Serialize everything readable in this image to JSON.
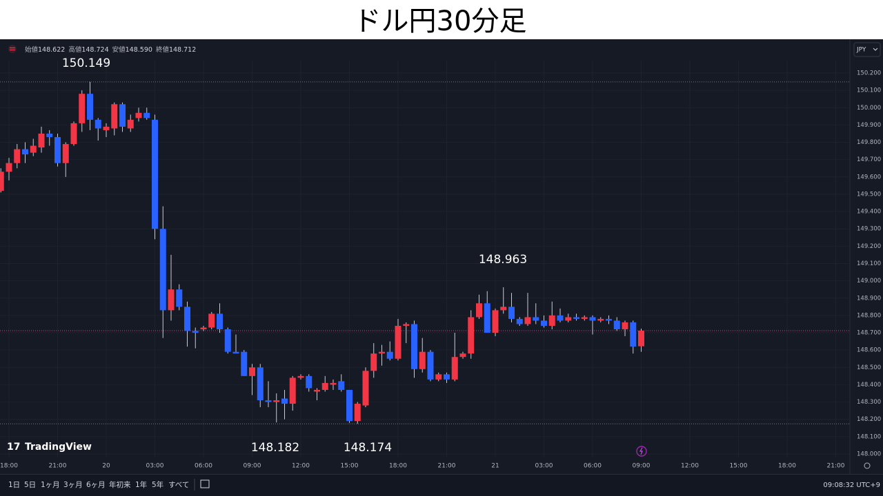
{
  "page_title": "ドル円30分足",
  "legend_header": [
    {
      "label": "始値",
      "value": "148.622"
    },
    {
      "label": "高値",
      "value": "148.724"
    },
    {
      "label": "安値",
      "value": "148.590"
    },
    {
      "label": "終値",
      "value": "148.712"
    }
  ],
  "currency": "JPY",
  "logo": "TradingView",
  "toolbar": {
    "ranges": [
      "1日",
      "5日",
      "1ヶ月",
      "3ヶ月",
      "6ヶ月",
      "年初来",
      "1年",
      "5年",
      "すべて"
    ],
    "clock": "09:08:32 UTC+9"
  },
  "chart_data": {
    "type": "candlestick",
    "up_color": "#f23645",
    "down_color": "#2962ff",
    "wick_color": "#c9ccd4",
    "grid": true,
    "x": [
      17.5,
      18,
      18.5,
      19,
      19.5,
      20,
      20.5,
      21,
      21.5,
      22,
      22.5,
      23,
      23.5,
      24,
      24.5,
      25,
      25.5,
      26,
      26.5,
      27,
      27.5,
      28,
      28.5,
      29,
      29.5,
      30,
      30.5,
      31,
      31.5,
      32,
      32.5,
      33,
      33.5,
      34,
      34.5,
      35,
      35.5,
      36,
      36.5,
      37,
      37.5,
      38,
      38.5,
      39,
      39.5,
      40,
      40.5,
      41,
      41.5,
      42,
      42.5,
      43,
      43.5,
      44,
      44.5,
      45,
      45.5,
      46,
      46.5,
      47,
      47.5,
      48,
      48.5,
      49,
      49.5,
      50,
      50.5,
      51,
      51.5,
      52,
      52.5,
      53,
      53.5,
      54,
      54.5,
      55,
      55.5,
      56,
      56.5,
      57
    ],
    "open": [
      149.52,
      149.63,
      149.68,
      149.76,
      149.74,
      149.77,
      149.85,
      149.83,
      149.68,
      149.79,
      149.91,
      150.08,
      149.93,
      149.87,
      149.88,
      150.02,
      149.88,
      149.94,
      149.97,
      149.93,
      149.3,
      148.83,
      148.95,
      148.85,
      148.71,
      148.72,
      148.73,
      148.81,
      148.72,
      148.59,
      148.59,
      148.45,
      148.5,
      148.31,
      148.3,
      148.32,
      148.29,
      148.44,
      148.45,
      148.36,
      148.37,
      148.4,
      148.42,
      148.37,
      148.19,
      148.28,
      148.48,
      148.58,
      148.59,
      148.55,
      148.74,
      148.75,
      148.49,
      148.59,
      148.43,
      148.46,
      148.43,
      148.56,
      148.58,
      148.79,
      148.87,
      148.7,
      148.83,
      148.85,
      148.78,
      148.75,
      148.79,
      148.77,
      148.74,
      148.8,
      148.77,
      148.79,
      148.78,
      148.79,
      148.77,
      148.78,
      148.77,
      148.72,
      148.76,
      148.622
    ],
    "high": [
      149.65,
      149.71,
      149.79,
      149.8,
      149.82,
      149.89,
      149.87,
      149.85,
      149.8,
      149.92,
      150.1,
      150.149,
      149.94,
      149.91,
      150.03,
      150.03,
      149.96,
      150.0,
      150.0,
      149.96,
      149.43,
      149.15,
      148.98,
      148.88,
      148.73,
      148.74,
      148.82,
      148.87,
      148.73,
      148.69,
      148.6,
      148.52,
      148.52,
      148.42,
      148.35,
      148.37,
      148.45,
      148.46,
      148.46,
      148.38,
      148.45,
      148.43,
      148.46,
      148.37,
      148.3,
      148.5,
      148.64,
      148.63,
      148.65,
      148.78,
      148.76,
      148.77,
      148.67,
      148.6,
      148.47,
      148.47,
      148.7,
      148.59,
      148.83,
      148.92,
      148.94,
      148.84,
      148.963,
      148.93,
      148.79,
      148.93,
      148.87,
      148.8,
      148.88,
      148.84,
      148.81,
      148.81,
      148.8,
      148.8,
      148.79,
      148.8,
      148.79,
      148.77,
      148.77,
      148.724
    ],
    "low": [
      149.51,
      149.58,
      149.65,
      149.68,
      149.72,
      149.74,
      149.78,
      149.66,
      149.6,
      149.78,
      149.86,
      149.87,
      149.81,
      149.83,
      149.84,
      149.86,
      149.86,
      149.92,
      149.93,
      149.24,
      148.67,
      148.77,
      148.83,
      148.62,
      148.61,
      148.71,
      148.72,
      148.7,
      148.58,
      148.58,
      148.45,
      148.34,
      148.27,
      148.27,
      148.182,
      148.2,
      148.25,
      148.43,
      148.36,
      148.31,
      148.36,
      148.37,
      148.36,
      148.18,
      148.174,
      148.27,
      148.44,
      148.51,
      148.54,
      148.54,
      148.64,
      148.44,
      148.47,
      148.42,
      148.42,
      148.41,
      148.42,
      148.55,
      148.55,
      148.78,
      148.7,
      148.68,
      148.81,
      148.76,
      148.74,
      148.74,
      148.75,
      148.73,
      148.72,
      148.76,
      148.76,
      148.77,
      148.77,
      148.69,
      148.76,
      148.75,
      148.71,
      148.68,
      148.58,
      148.59
    ],
    "close": [
      149.63,
      149.68,
      149.76,
      149.73,
      149.78,
      149.85,
      149.83,
      149.68,
      149.79,
      149.91,
      150.08,
      149.93,
      149.88,
      149.89,
      150.02,
      149.89,
      149.93,
      149.97,
      149.94,
      149.3,
      148.83,
      148.95,
      148.85,
      148.71,
      148.7,
      148.73,
      148.81,
      148.72,
      148.59,
      148.58,
      148.45,
      148.5,
      148.31,
      148.3,
      148.31,
      148.29,
      148.44,
      148.45,
      148.38,
      148.37,
      148.41,
      148.41,
      148.37,
      148.19,
      148.29,
      148.48,
      148.58,
      148.59,
      148.55,
      148.74,
      148.75,
      148.49,
      148.59,
      148.43,
      148.46,
      148.43,
      148.56,
      148.58,
      148.79,
      148.87,
      148.7,
      148.83,
      148.85,
      148.78,
      148.75,
      148.79,
      148.77,
      148.74,
      148.8,
      148.77,
      148.79,
      148.78,
      148.79,
      148.77,
      148.78,
      148.77,
      148.72,
      148.76,
      148.62,
      148.712
    ],
    "xlim": [
      17.447,
      69.872
    ],
    "xticks": [
      {
        "value": 18,
        "label": "18:00"
      },
      {
        "value": 21,
        "label": "21:00"
      },
      {
        "value": 24,
        "label": "20"
      },
      {
        "value": 27,
        "label": "03:00"
      },
      {
        "value": 30,
        "label": "06:00"
      },
      {
        "value": 33,
        "label": "09:00"
      },
      {
        "value": 36,
        "label": "12:00"
      },
      {
        "value": 39,
        "label": "15:00"
      },
      {
        "value": 42,
        "label": "18:00"
      },
      {
        "value": 45,
        "label": "21:00"
      },
      {
        "value": 48,
        "label": "21"
      },
      {
        "value": 51,
        "label": "03:00"
      },
      {
        "value": 54,
        "label": "06:00"
      },
      {
        "value": 57,
        "label": "09:00"
      },
      {
        "value": 60,
        "label": "12:00"
      },
      {
        "value": 63,
        "label": "15:00"
      },
      {
        "value": 66,
        "label": "18:00"
      },
      {
        "value": 69,
        "label": "21:00"
      }
    ],
    "ylim": [
      147.976,
      150.383
    ],
    "yticks": [
      {
        "value": 148.0,
        "label": "148.000"
      },
      {
        "value": 148.1,
        "label": "148.100"
      },
      {
        "value": 148.2,
        "label": "148.200"
      },
      {
        "value": 148.3,
        "label": "148.300"
      },
      {
        "value": 148.4,
        "label": "148.400"
      },
      {
        "value": 148.5,
        "label": "148.500"
      },
      {
        "value": 148.6,
        "label": "148.600"
      },
      {
        "value": 148.7,
        "label": "148.700"
      },
      {
        "value": 148.8,
        "label": "148.800"
      },
      {
        "value": 148.9,
        "label": "148.900"
      },
      {
        "value": 149.0,
        "label": "149.000"
      },
      {
        "value": 149.1,
        "label": "149.100"
      },
      {
        "value": 149.2,
        "label": "149.200"
      },
      {
        "value": 149.3,
        "label": "149.300"
      },
      {
        "value": 149.4,
        "label": "149.400"
      },
      {
        "value": 149.5,
        "label": "149.500"
      },
      {
        "value": 149.6,
        "label": "149.600"
      },
      {
        "value": 149.7,
        "label": "149.700"
      },
      {
        "value": 149.8,
        "label": "149.800"
      },
      {
        "value": 149.9,
        "label": "149.900"
      },
      {
        "value": 150.0,
        "label": "150.000"
      },
      {
        "value": 150.1,
        "label": "150.100"
      },
      {
        "value": 150.2,
        "label": "150.200"
      }
    ]
  }
}
